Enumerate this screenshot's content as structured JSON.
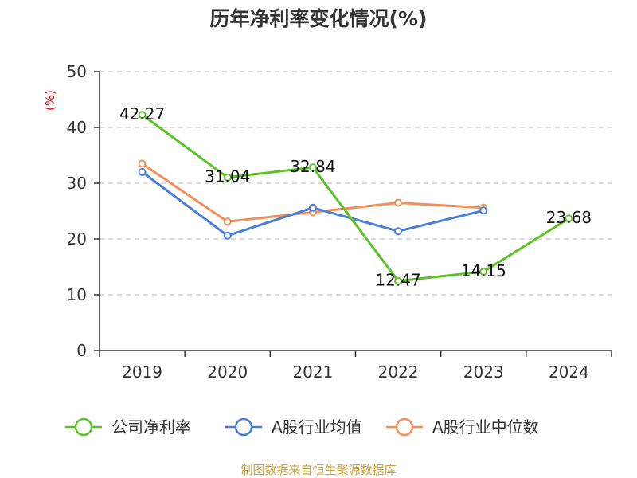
{
  "chart_data": {
    "type": "line",
    "title": "历年净利率变化情况(%)",
    "ylabel": "(%)",
    "xlabel": "",
    "categories": [
      "2019",
      "2020",
      "2021",
      "2022",
      "2023",
      "2024"
    ],
    "ylim": [
      0,
      50
    ],
    "yticks": [
      0,
      10,
      20,
      30,
      40,
      50
    ],
    "grid": true,
    "legend_position": "bottom",
    "series": [
      {
        "name": "公司净利率",
        "color": "#5cc326",
        "values": [
          42.27,
          31.04,
          32.84,
          12.47,
          14.15,
          23.68
        ],
        "show_labels": true
      },
      {
        "name": "A股行业均值",
        "color": "#4a7fd8",
        "values": [
          32.0,
          20.6,
          25.6,
          21.4,
          25.1,
          null
        ],
        "show_labels": false
      },
      {
        "name": "A股行业中位数",
        "color": "#f58f5a",
        "values": [
          33.5,
          23.1,
          24.8,
          26.5,
          25.6,
          null
        ],
        "show_labels": false
      }
    ],
    "data_labels": [
      "42.27",
      "31.04",
      "32.84",
      "12.47",
      "14.15",
      "23.68"
    ]
  },
  "source": "制图数据来自恒生聚源数据库"
}
